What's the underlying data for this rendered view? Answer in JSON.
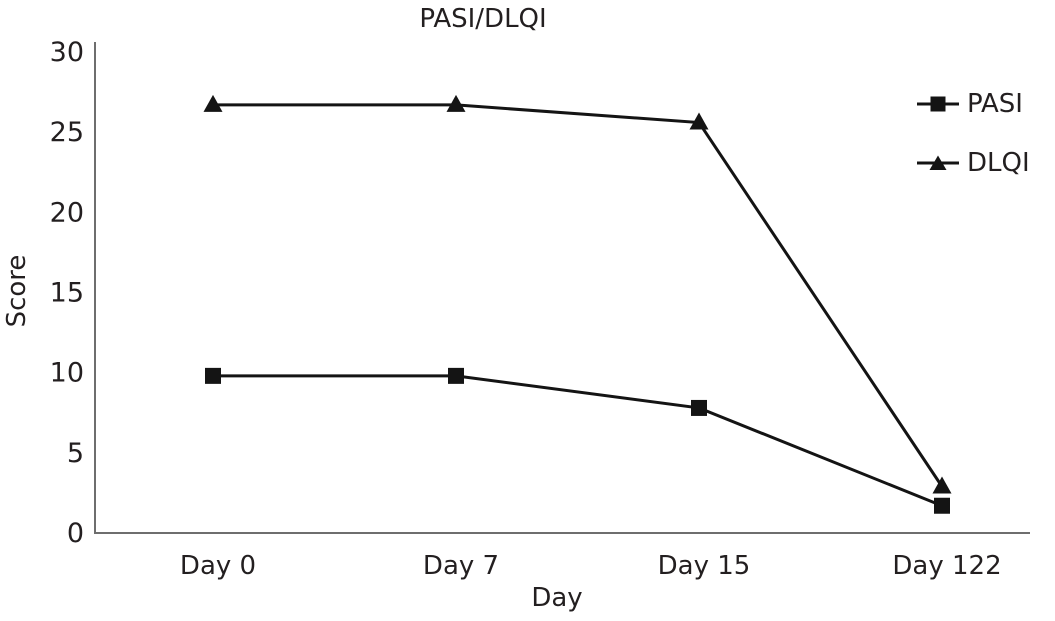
{
  "chart_data": {
    "type": "line",
    "title": "PASI/DLQI",
    "xlabel": "Day",
    "ylabel": "Score",
    "categories": [
      "Day 0",
      "Day 7",
      "Day 15",
      "Day 122"
    ],
    "series": [
      {
        "name": "PASI",
        "marker": "square",
        "values": [
          9.8,
          9.8,
          7.8,
          1.7
        ]
      },
      {
        "name": "DLQI",
        "marker": "triangle",
        "values": [
          26.7,
          26.7,
          25.6,
          2.9
        ]
      }
    ],
    "ylim": [
      0,
      30
    ],
    "yticks": [
      0,
      5,
      10,
      15,
      20,
      25,
      30
    ],
    "grid": false,
    "legend_position": "top-right",
    "colors": {
      "line": "#141414",
      "axis": "#6e6e6e",
      "text": "#231f20"
    }
  }
}
